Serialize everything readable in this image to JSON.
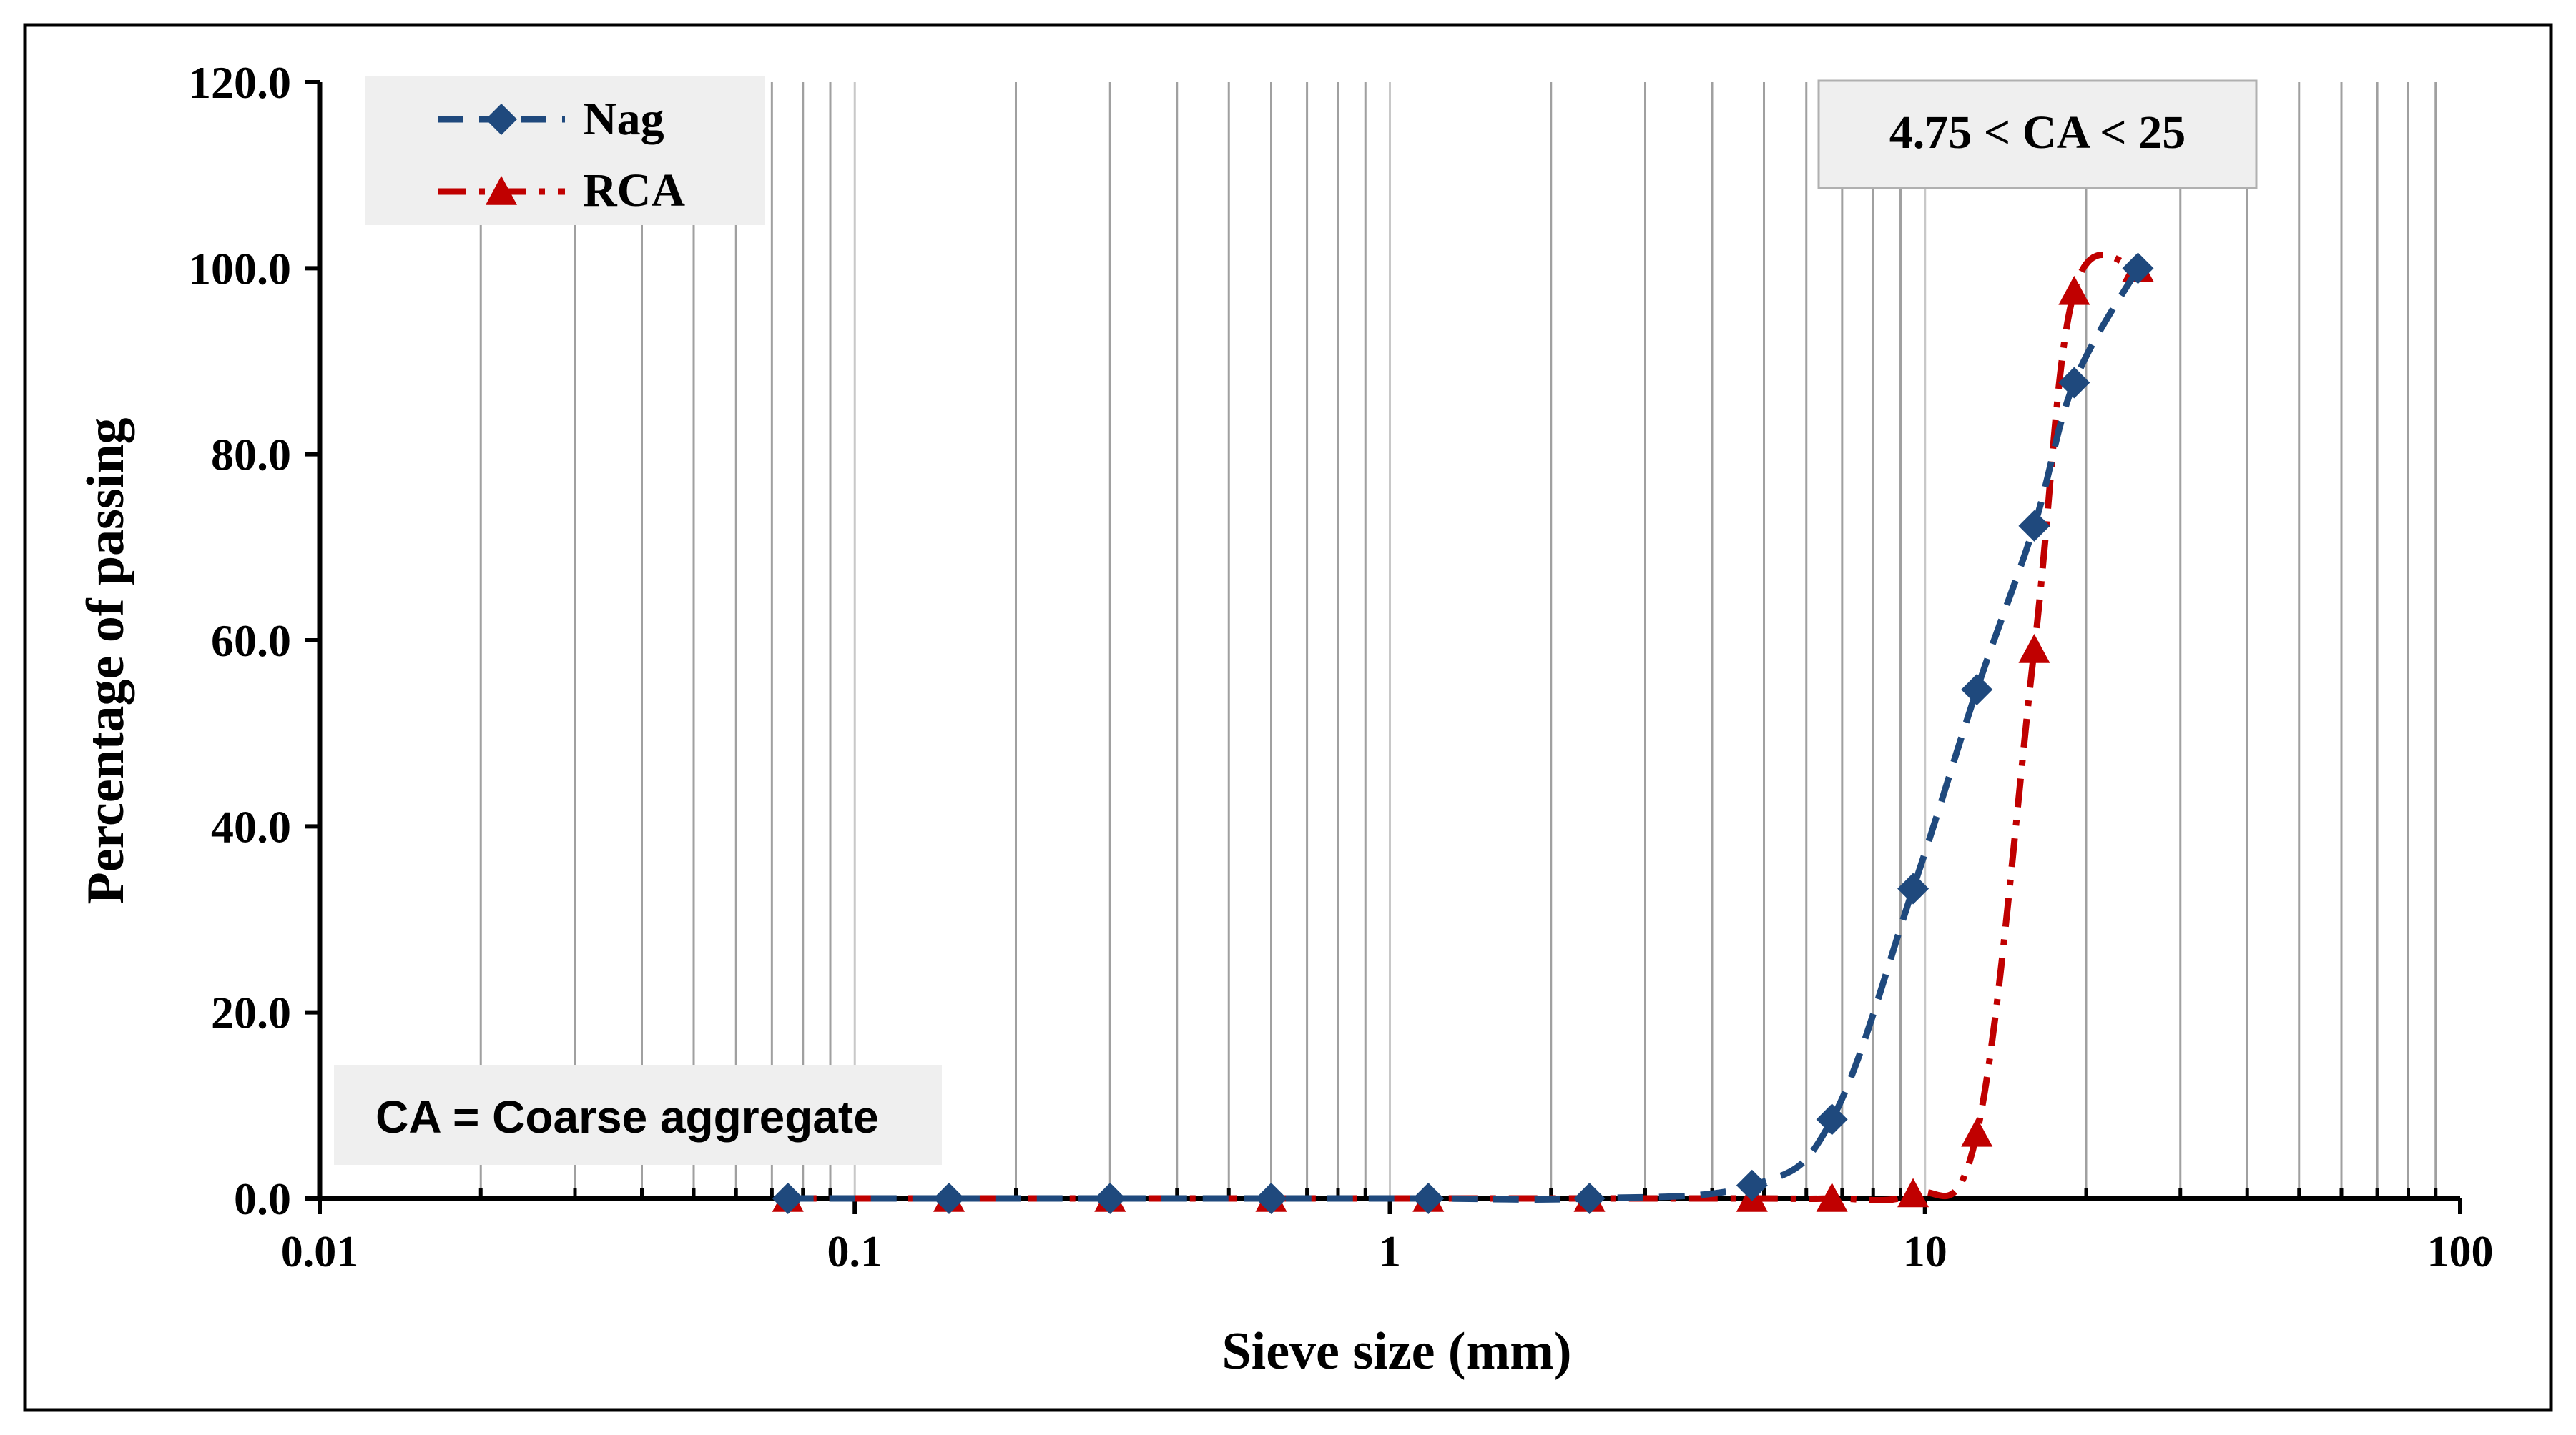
{
  "chart_data": {
    "type": "line",
    "xscale": "log",
    "xlabel": "Sieve size (mm)",
    "ylabel": "Percentage of passing",
    "xlim": [
      0.01,
      100
    ],
    "ylim": [
      0,
      120
    ],
    "x_ticks": [
      0.01,
      0.1,
      1,
      10,
      100
    ],
    "x_tick_labels": [
      "0.01",
      "0.1",
      "1",
      "10",
      "100"
    ],
    "y_ticks": [
      0,
      20,
      40,
      60,
      80,
      100,
      120
    ],
    "y_tick_labels": [
      "0.0",
      "20.0",
      "40.0",
      "60.0",
      "80.0",
      "100.0",
      "120.0"
    ],
    "grid": "vertical log-minor gridlines",
    "legend": {
      "position": "top-left"
    },
    "series": [
      {
        "name": "Nag",
        "color": "#1f497d",
        "marker": "diamond",
        "line": "dashed",
        "x": [
          0.075,
          0.15,
          0.3,
          0.6,
          1.18,
          2.36,
          4.75,
          6.7,
          9.5,
          12.5,
          16,
          19,
          25
        ],
        "y": [
          0,
          0,
          0,
          0,
          0,
          0,
          1.4,
          8.5,
          33.3,
          54.7,
          72.3,
          87.7,
          100
        ]
      },
      {
        "name": "RCA",
        "color": "#c00000",
        "marker": "triangle",
        "line": "dash-dot",
        "x": [
          0.075,
          0.15,
          0.3,
          0.6,
          1.18,
          2.36,
          4.75,
          6.7,
          9.5,
          12.5,
          16,
          19,
          25
        ],
        "y": [
          0,
          0,
          0,
          0,
          0,
          0,
          0,
          0,
          0.5,
          7,
          59,
          97.5,
          100
        ]
      }
    ],
    "annotations": [
      "4.75 < CA < 25",
      "CA = Coarse aggregate"
    ]
  }
}
